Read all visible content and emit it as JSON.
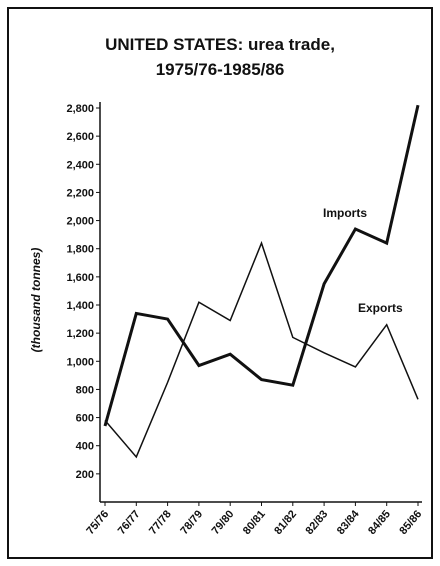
{
  "chart_data": {
    "type": "line",
    "title": "UNITED STATES: urea trade,",
    "subtitle": "1975/76-1985/86",
    "y_label": "(thousand tonnes)",
    "categories": [
      "75/76",
      "76/77",
      "77/78",
      "78/79",
      "79/80",
      "80/81",
      "81/82",
      "82/83",
      "83/84",
      "84/85",
      "85/86"
    ],
    "series": [
      {
        "name": "Imports",
        "color": "#111111",
        "width": 3,
        "values": [
          540,
          1340,
          1300,
          970,
          1050,
          870,
          830,
          1550,
          1940,
          1840,
          2820
        ]
      },
      {
        "name": "Exports",
        "color": "#111111",
        "width": 1.5,
        "values": [
          580,
          320,
          850,
          1420,
          1290,
          1840,
          1170,
          1060,
          960,
          1260,
          730
        ]
      }
    ],
    "ylim": [
      0,
      2800
    ],
    "yticks": [
      200,
      400,
      600,
      800,
      {
        "value": 1000,
        "label": "1,000"
      },
      {
        "value": 1200,
        "label": "1,200"
      },
      {
        "value": 1400,
        "label": "1,400"
      },
      {
        "value": 1600,
        "label": "1,600"
      },
      {
        "value": 1800,
        "label": "1,800"
      },
      {
        "value": 2000,
        "label": "2,000"
      },
      {
        "value": 2200,
        "label": "2,200"
      },
      {
        "value": 2400,
        "label": "2,400"
      },
      {
        "value": 2600,
        "label": "2,600"
      },
      {
        "value": 2800,
        "label": "2,800"
      }
    ],
    "grid": false
  }
}
